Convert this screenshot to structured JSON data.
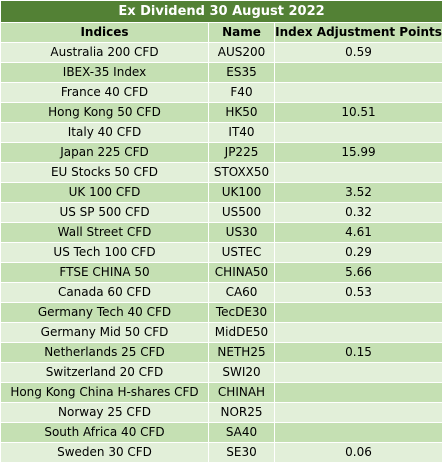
{
  "title": "Ex Dividend 30 August 2022",
  "headers": {
    "indices": "Indices",
    "name": "Name",
    "adjustment": "Index Adjustment Points"
  },
  "rows": [
    {
      "index": "Australia 200 CFD",
      "name": "AUS200",
      "points": "0.59"
    },
    {
      "index": "IBEX-35 Index",
      "name": "ES35",
      "points": ""
    },
    {
      "index": "France 40 CFD",
      "name": "F40",
      "points": ""
    },
    {
      "index": "Hong Kong 50 CFD",
      "name": "HK50",
      "points": "10.51"
    },
    {
      "index": "Italy 40 CFD",
      "name": "IT40",
      "points": ""
    },
    {
      "index": "Japan 225 CFD",
      "name": "JP225",
      "points": "15.99"
    },
    {
      "index": "EU Stocks 50 CFD",
      "name": "STOXX50",
      "points": ""
    },
    {
      "index": "UK 100 CFD",
      "name": "UK100",
      "points": "3.52"
    },
    {
      "index": "US SP 500 CFD",
      "name": "US500",
      "points": "0.32"
    },
    {
      "index": "Wall Street CFD",
      "name": "US30",
      "points": "4.61"
    },
    {
      "index": "US Tech 100 CFD",
      "name": "USTEC",
      "points": "0.29"
    },
    {
      "index": "FTSE CHINA 50",
      "name": "CHINA50",
      "points": "5.66"
    },
    {
      "index": "Canada 60 CFD",
      "name": "CA60",
      "points": "0.53"
    },
    {
      "index": "Germany Tech 40 CFD",
      "name": "TecDE30",
      "points": ""
    },
    {
      "index": "Germany Mid 50 CFD",
      "name": "MidDE50",
      "points": ""
    },
    {
      "index": "Netherlands 25 CFD",
      "name": "NETH25",
      "points": "0.15"
    },
    {
      "index": "Switzerland 20 CFD",
      "name": "SWI20",
      "points": ""
    },
    {
      "index": "Hong Kong China H-shares CFD",
      "name": "CHINAH",
      "points": ""
    },
    {
      "index": "Norway 25 CFD",
      "name": "NOR25",
      "points": ""
    },
    {
      "index": "South Africa 40 CFD",
      "name": "SA40",
      "points": ""
    },
    {
      "index": "Sweden 30 CFD",
      "name": "SE30",
      "points": "0.06"
    }
  ],
  "colors": {
    "title_bg": "#538135",
    "title_text": "#ffffff",
    "header_bg": "#c5e0b3",
    "row_light": "#e2efd9",
    "row_dark": "#c5e0b3"
  }
}
